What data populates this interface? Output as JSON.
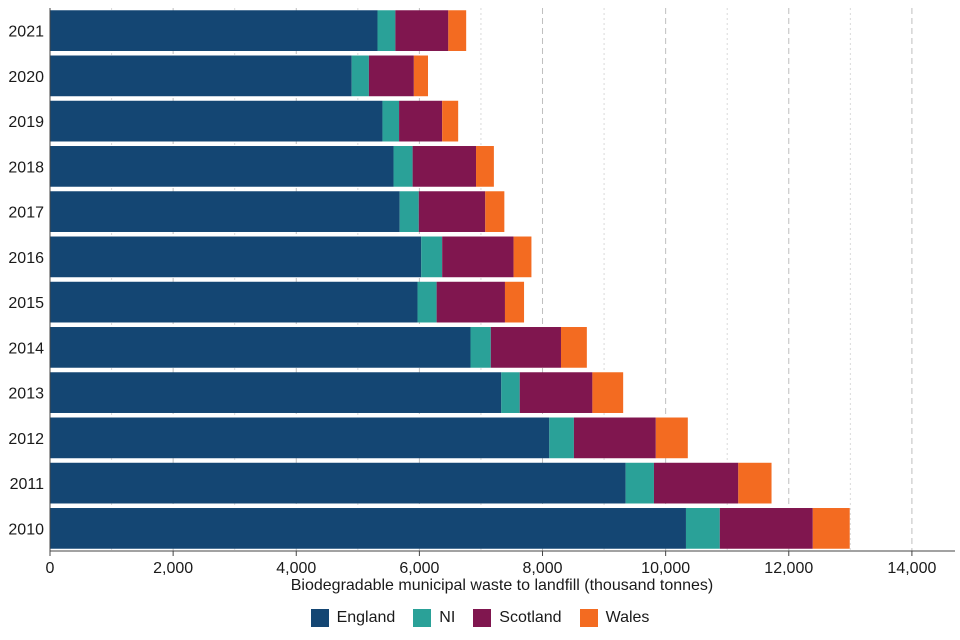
{
  "chart_data": {
    "type": "bar",
    "orientation": "horizontal",
    "stacked": true,
    "title": "",
    "xlabel": "Biodegradable municipal waste to landfill (thousand tonnes)",
    "ylabel": "",
    "xlim": [
      0,
      14700
    ],
    "x_ticks": [
      0,
      2000,
      4000,
      6000,
      8000,
      10000,
      12000,
      14000
    ],
    "x_tick_labels": [
      "0",
      "2,000",
      "4,000",
      "6,000",
      "8,000",
      "10,000",
      "12,000",
      "14,000"
    ],
    "categories": [
      "2021",
      "2020",
      "2019",
      "2018",
      "2017",
      "2016",
      "2015",
      "2014",
      "2013",
      "2012",
      "2011",
      "2010"
    ],
    "series": [
      {
        "name": "England",
        "color": "#144673",
        "values": [
          5320,
          4900,
          5400,
          5580,
          5680,
          6030,
          5970,
          6830,
          7330,
          8110,
          9350,
          10330
        ]
      },
      {
        "name": "NI",
        "color": "#2aa198",
        "values": [
          290,
          280,
          270,
          310,
          310,
          340,
          310,
          330,
          300,
          400,
          460,
          550
        ]
      },
      {
        "name": "Scotland",
        "color": "#80164f",
        "values": [
          860,
          730,
          700,
          1030,
          1080,
          1160,
          1110,
          1140,
          1180,
          1330,
          1370,
          1510
        ]
      },
      {
        "name": "Wales",
        "color": "#f36b21",
        "values": [
          290,
          230,
          260,
          290,
          310,
          290,
          310,
          420,
          500,
          520,
          540,
          600
        ]
      }
    ],
    "grid": "vertical dashed",
    "legend_position": "bottom"
  }
}
